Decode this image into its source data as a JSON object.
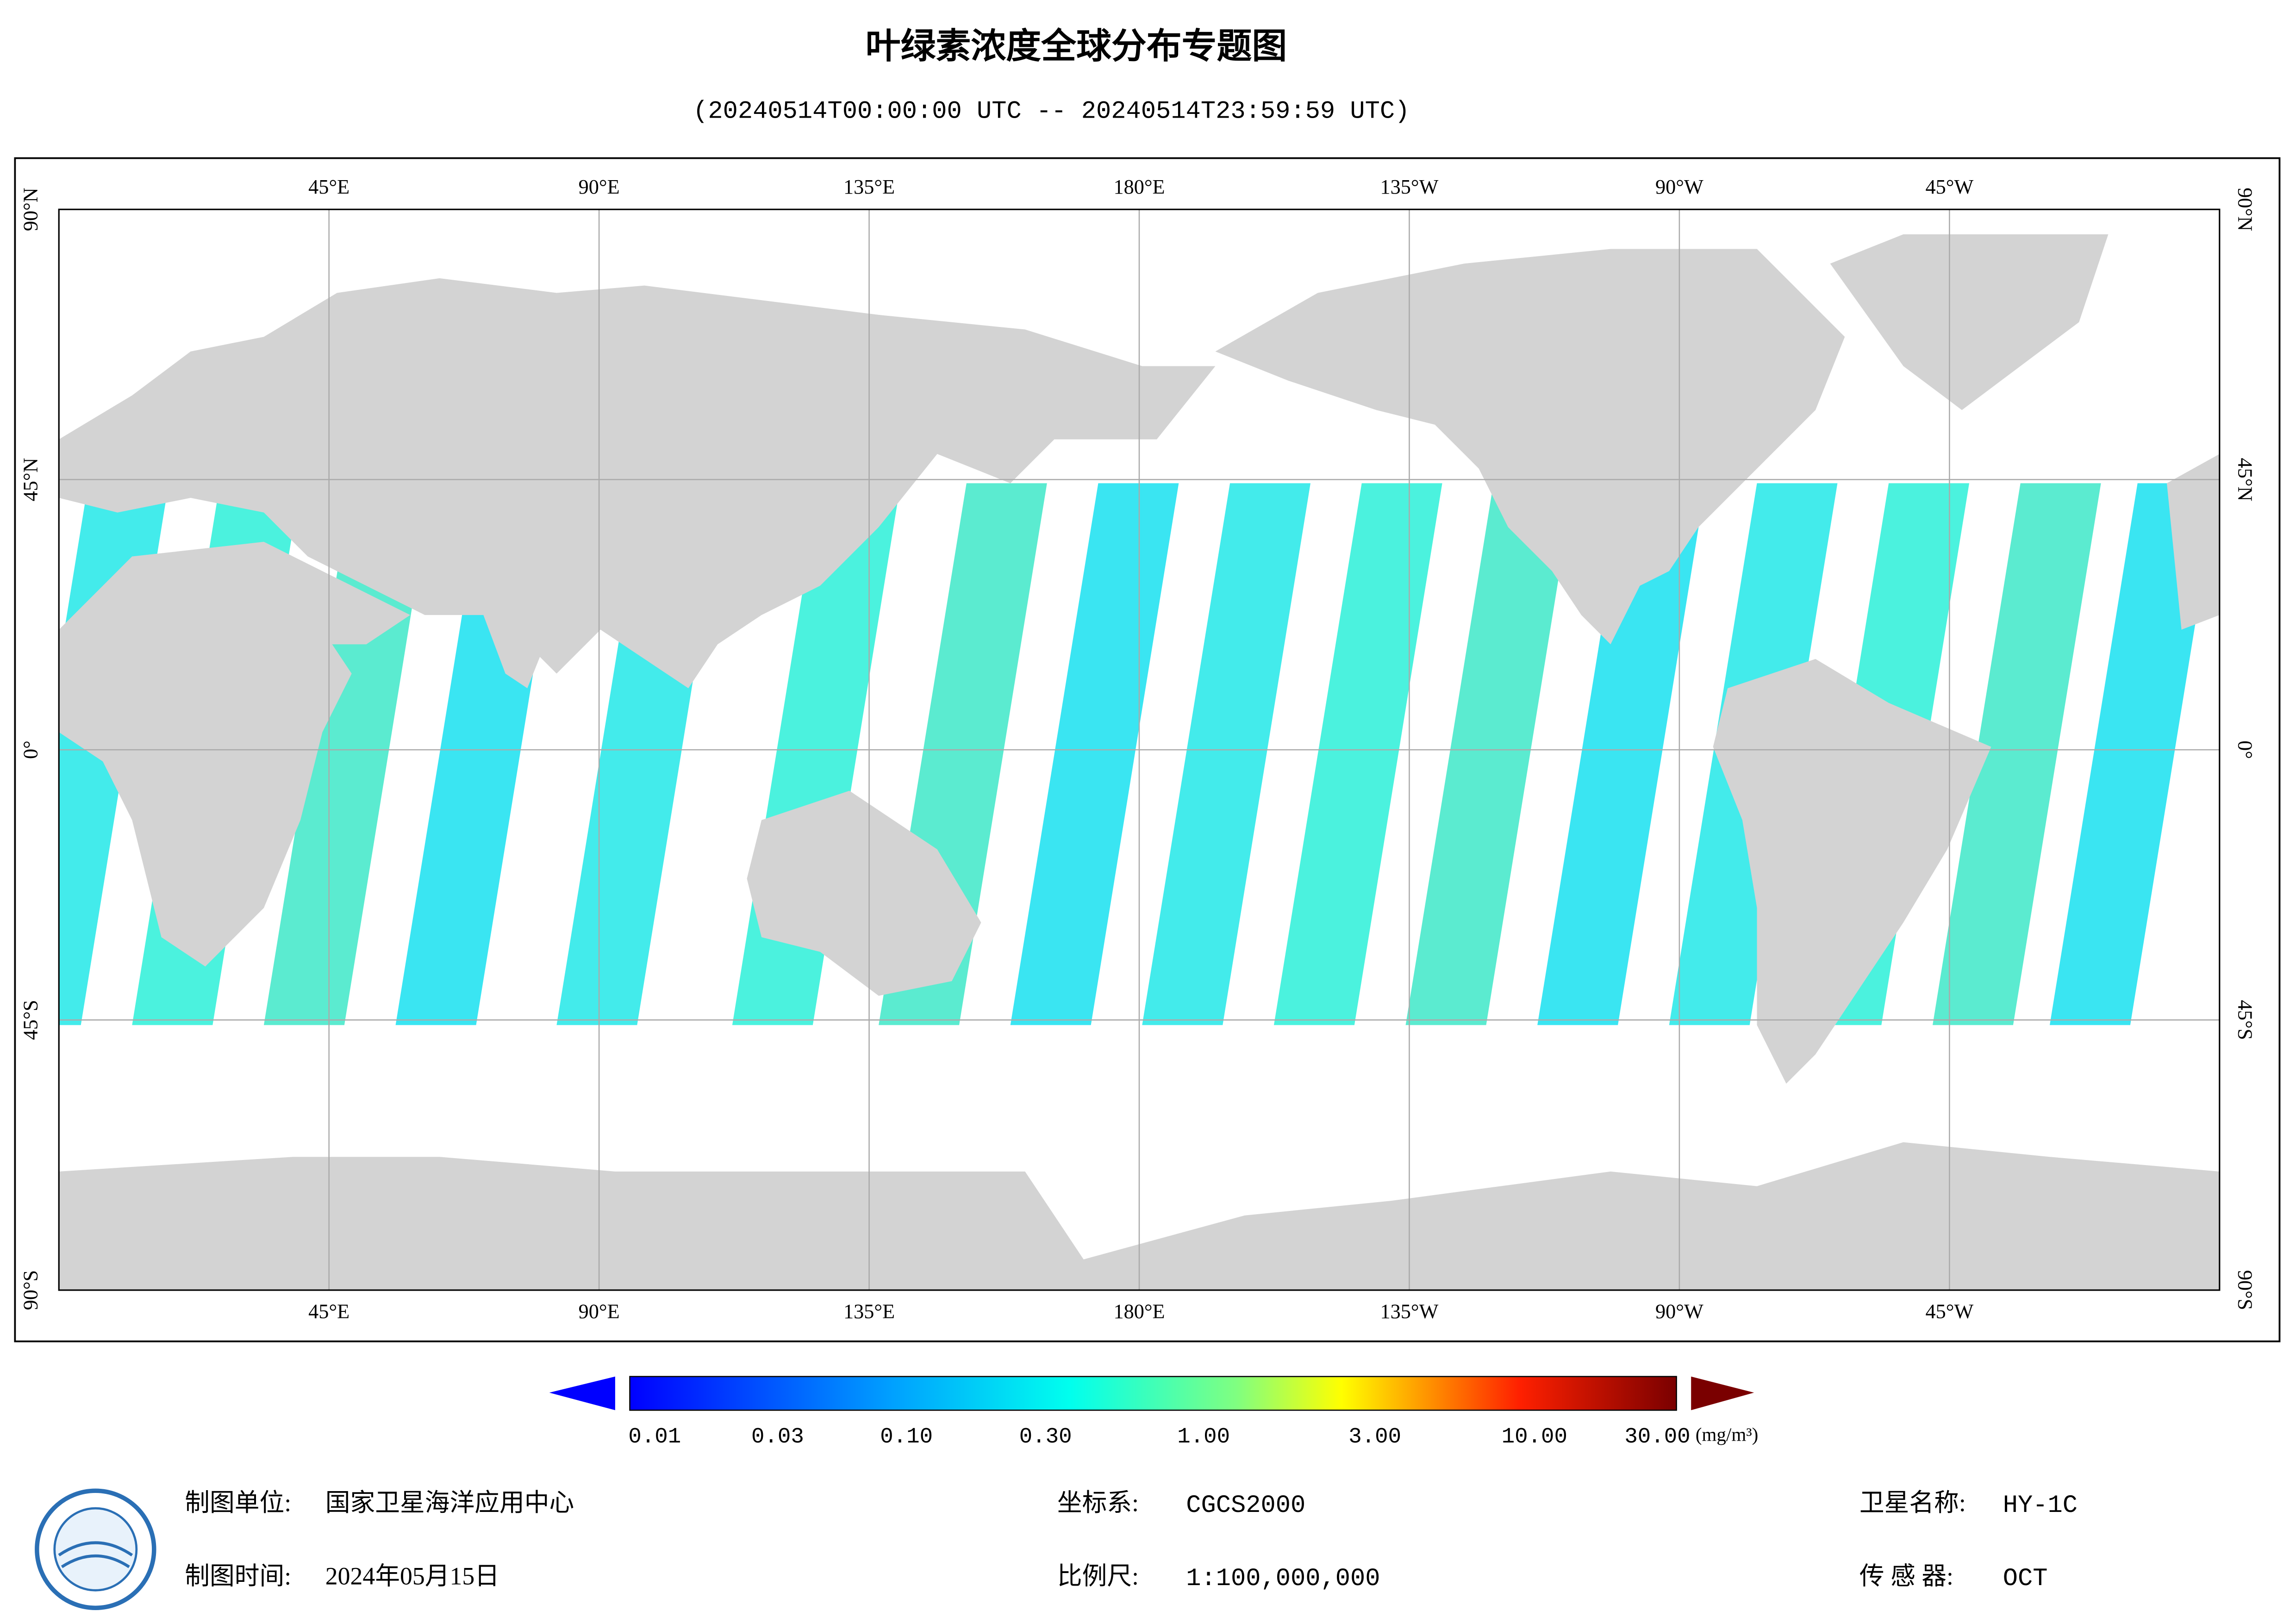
{
  "title": "叶绿素浓度全球分布专题图",
  "subtitle": "(20240514T00:00:00 UTC -- 20240514T23:59:59 UTC)",
  "map": {
    "top_labels": [
      "45°E",
      "90°E",
      "135°E",
      "180°E",
      "135°W",
      "90°W",
      "45°W"
    ],
    "bottom_labels": [
      "45°E",
      "90°E",
      "135°E",
      "180°E",
      "135°W",
      "90°W",
      "45°W"
    ],
    "left_labels": [
      "90°N",
      "45°N",
      "0°",
      "45°S",
      "90°S"
    ],
    "right_labels": [
      "90°N",
      "45°N",
      "0°",
      "45°S",
      "90°S"
    ]
  },
  "colorbar": {
    "labels": [
      "0.01",
      "0.03",
      "0.10",
      "0.30",
      "1.00",
      "3.00",
      "10.00",
      "30.00"
    ],
    "unit": "(mg/m³)"
  },
  "footer": {
    "maker_label": "制图单位:",
    "maker": "国家卫星海洋应用中心",
    "date_label": "制图时间:",
    "date": "2024年05月15日",
    "crs_label": "坐标系:",
    "crs": "CGCS2000",
    "scale_label": "比例尺:",
    "scale": "1:100,000,000",
    "satellite_label": "卫星名称:",
    "satellite": "HY-1C",
    "sensor_label": "传 感 器:",
    "sensor": "OCT"
  }
}
